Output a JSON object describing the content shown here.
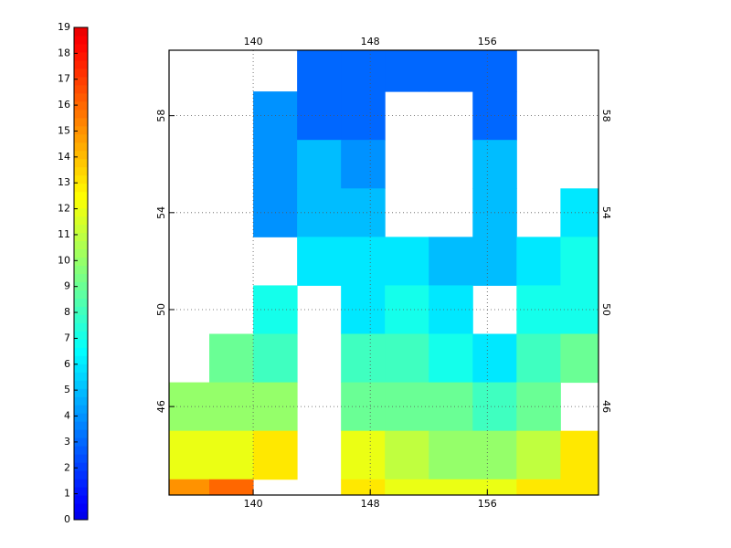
{
  "chart_data": {
    "type": "heatmap-map",
    "colorbar": {
      "clim": [
        0,
        19
      ],
      "ticks": [
        0,
        1,
        2,
        3,
        4,
        5,
        6,
        7,
        8,
        9,
        10,
        11,
        12,
        13,
        14,
        15,
        16,
        17,
        18,
        19
      ]
    },
    "xlim": [
      134.25,
      163.6
    ],
    "ylim": [
      42.35,
      60.7
    ],
    "xticks": [
      140,
      148,
      156
    ],
    "yticks": [
      46,
      50,
      54,
      58
    ],
    "grid": true,
    "lon_edges": [
      134,
      137,
      140,
      143,
      146,
      149,
      152,
      155,
      158,
      161,
      164
    ],
    "lat_edges": [
      61,
      59,
      57,
      55,
      53,
      51,
      49,
      47,
      45,
      43,
      41
    ],
    "values": [
      [
        null,
        null,
        null,
        3,
        3,
        3,
        3,
        3,
        null,
        null
      ],
      [
        null,
        null,
        4,
        3,
        3,
        null,
        null,
        3,
        null,
        null
      ],
      [
        null,
        null,
        4,
        5,
        4,
        null,
        null,
        5,
        null,
        null
      ],
      [
        null,
        null,
        4,
        5,
        5,
        null,
        null,
        5,
        null,
        6
      ],
      [
        null,
        null,
        null,
        6,
        6,
        6,
        5,
        5,
        6,
        7
      ],
      [
        null,
        null,
        7,
        null,
        6,
        7,
        6,
        null,
        7,
        7
      ],
      [
        null,
        9,
        8,
        null,
        8,
        8,
        7,
        6,
        8,
        9
      ],
      [
        10,
        10,
        10,
        null,
        9,
        9,
        9,
        8,
        9,
        null
      ],
      [
        12,
        12,
        13,
        null,
        12,
        11,
        10,
        10,
        11,
        13
      ],
      [
        15,
        16,
        null,
        null,
        13,
        12,
        12,
        12,
        13,
        13
      ]
    ]
  }
}
